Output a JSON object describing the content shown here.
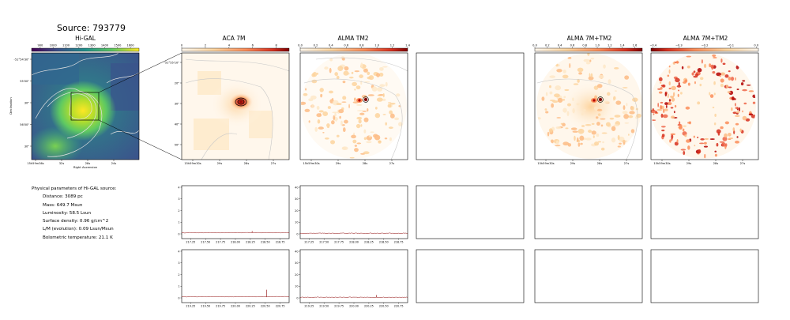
{
  "figure": {
    "source_title": "Source: 793779",
    "panel_titles": {
      "higal": "Hi-GAL",
      "aca": "ACA 7M",
      "tm2": "ALMA TM2",
      "combo": "ALMA 7M+TM2",
      "diff": "ALMA 7M+TM2"
    }
  },
  "colorbars": {
    "higal": {
      "ticks": [
        "900",
        "1000",
        "1100",
        "1200",
        "1300",
        "1400",
        "1500",
        "1600"
      ],
      "cmap": "viridis"
    },
    "aca": {
      "ticks": [
        "0",
        "2",
        "4",
        "6",
        "8"
      ],
      "cmap": "OrRd"
    },
    "tm2": {
      "ticks": [
        "0.0",
        "0.2",
        "0.4",
        "0.6",
        "0.8",
        "1.0",
        "1.2",
        "1.4"
      ],
      "cmap": "OrRd"
    },
    "combo": {
      "ticks": [
        "0.0",
        "0.2",
        "0.4",
        "0.6",
        "0.8",
        "1.0",
        "1.2",
        "1.4",
        "1.6"
      ],
      "cmap": "OrRd"
    },
    "diff": {
      "ticks": [
        "−0.4",
        "−0.3",
        "−0.2",
        "−0.1",
        "0.0"
      ],
      "cmap": "OrRd_r"
    }
  },
  "axes": {
    "higal": {
      "ylabel": "Declination",
      "xlabel": "Right Ascension",
      "yticks": [
        "-51°54'30\"",
        "55'00\"",
        "30\"",
        "56'00\"",
        "30\""
      ],
      "xticks": [
        "15h59m36s",
        "32s",
        "28s",
        "24s"
      ]
    },
    "aca": {
      "yticks": [
        "-51°55'10\"",
        "20\"",
        "30\"",
        "40\"",
        "50\""
      ],
      "xticks": [
        "15h59m30s",
        "29s",
        "28s",
        "27s"
      ]
    },
    "tm2": {
      "xticks": [
        "15h59m30s",
        "29s",
        "28s",
        "27s"
      ]
    },
    "combo": {
      "xticks": [
        "15h59m30s",
        "29s",
        "28s",
        "27s"
      ]
    },
    "diff": {
      "xticks": [
        "15h59m30s",
        "29s",
        "28s",
        "27s"
      ]
    }
  },
  "params": {
    "header": "Physical parameters of Hi-GAL source:",
    "lines": [
      "Distance: 3089 pc",
      "Mass: 649.7 Msun",
      "Luminosity: 58.5 Lsun",
      "Surface density: 0.96 g/cm^2",
      "L/M (evolution): 0.09 Lsun/Msun",
      "Bolometric temperature: 21.1 K"
    ]
  },
  "spectra": {
    "row1": {
      "aca": {
        "ylim": [
          0,
          4
        ],
        "yticks": [
          "0",
          "1",
          "2",
          "3",
          "4"
        ],
        "xticks": [
          "217.25",
          "217.50",
          "217.75",
          "218.00",
          "218.25",
          "218.50",
          "218.75"
        ]
      },
      "tm2": {
        "ylim": [
          0,
          40
        ],
        "yticks": [
          "0",
          "10",
          "20",
          "30",
          "40"
        ],
        "xticks": [
          "217.25",
          "217.50",
          "217.75",
          "218.00",
          "218.25",
          "218.50",
          "218.75"
        ]
      }
    },
    "row2": {
      "aca": {
        "ylim": [
          0,
          4
        ],
        "yticks": [
          "0",
          "1",
          "2",
          "3",
          "4"
        ],
        "xticks": [
          "219.25",
          "219.50",
          "219.75",
          "220.00",
          "220.25",
          "220.50",
          "220.75"
        ]
      },
      "tm2": {
        "ylim": [
          0,
          40
        ],
        "yticks": [
          "0",
          "10",
          "20",
          "30",
          "40"
        ],
        "xticks": [
          "219.25",
          "219.50",
          "219.75",
          "220.00",
          "220.25",
          "220.50",
          "220.75"
        ]
      }
    }
  },
  "chart_data": [
    {
      "type": "heatmap",
      "title": "Hi-GAL",
      "xlabel": "Right Ascension",
      "ylabel": "Declination",
      "colorbar_range": [
        850,
        1650
      ],
      "peak_value": 1600
    },
    {
      "type": "heatmap",
      "title": "ACA 7M",
      "colorbar_range": [
        0,
        9
      ],
      "peak_value": 9
    },
    {
      "type": "heatmap",
      "title": "ALMA TM2",
      "colorbar_range": [
        0,
        1.4
      ],
      "peak_value": 1.4
    },
    {
      "type": "heatmap",
      "title": "ALMA 7M+TM2",
      "colorbar_range": [
        0,
        1.75
      ],
      "peak_value": 1.7
    },
    {
      "type": "heatmap",
      "title": "ALMA 7M+TM2",
      "colorbar_range": [
        -0.5,
        0.0
      ]
    },
    {
      "type": "line",
      "x_range": [
        217.1,
        218.9
      ],
      "ylim": [
        0,
        4
      ],
      "baseline": 0.1,
      "spikes": [
        [
          218.28,
          0.25
        ]
      ]
    },
    {
      "type": "line",
      "x_range": [
        217.1,
        218.9
      ],
      "ylim": [
        0,
        40
      ],
      "baseline": 0.5
    },
    {
      "type": "line",
      "x_range": [
        219.1,
        220.9
      ],
      "ylim": [
        0,
        4
      ],
      "baseline": 0.1,
      "spikes": [
        [
          220.52,
          0.7
        ]
      ]
    },
    {
      "type": "line",
      "x_range": [
        219.1,
        220.9
      ],
      "ylim": [
        0,
        40
      ],
      "baseline": 0.5,
      "spikes": [
        [
          220.38,
          2.5
        ]
      ]
    }
  ]
}
